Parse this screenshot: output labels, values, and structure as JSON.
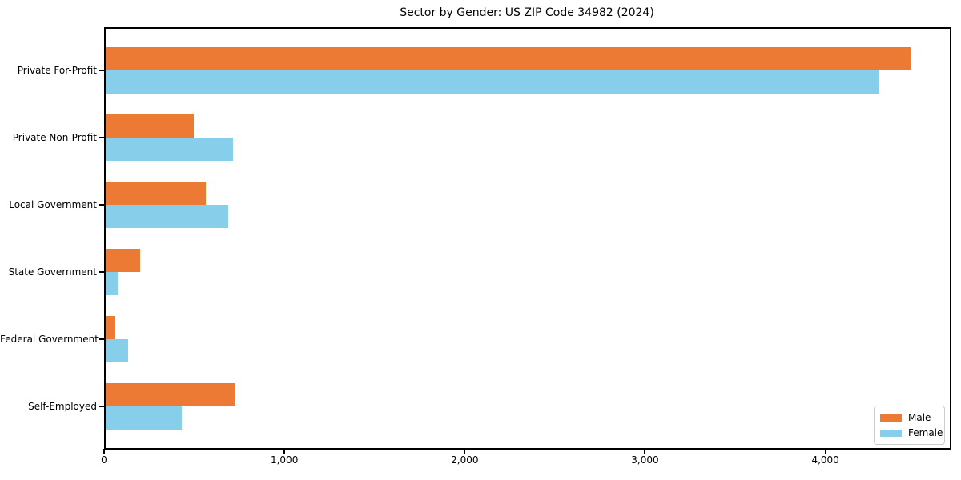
{
  "chart_data": {
    "type": "bar",
    "orientation": "horizontal",
    "title": "Sector by Gender: US ZIP Code 34982 (2024)",
    "categories": [
      "Private For-Profit",
      "Private Non-Profit",
      "Local Government",
      "State Government",
      "Federal Government",
      "Self-Employed"
    ],
    "series": [
      {
        "name": "Male",
        "color": "#EC7A35",
        "values": [
          4465,
          490,
          555,
          190,
          50,
          715
        ]
      },
      {
        "name": "Female",
        "color": "#87CEEB",
        "values": [
          4290,
          705,
          680,
          65,
          125,
          420
        ]
      }
    ],
    "xlabel": "",
    "ylabel": "",
    "xlim": [
      0,
      4690
    ],
    "xticks": [
      0,
      1000,
      2000,
      3000,
      4000
    ],
    "xtick_labels": [
      "0",
      "1,000",
      "2,000",
      "3,000",
      "4,000"
    ],
    "grid": false,
    "legend_position": "lower-right",
    "plot_border_color": "#000000",
    "background_color": "#ffffff"
  }
}
